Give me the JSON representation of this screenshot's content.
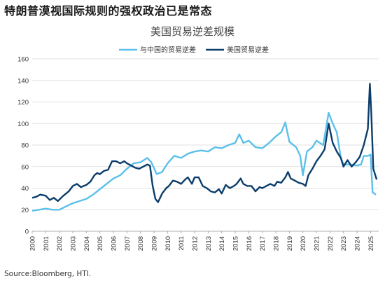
{
  "heading": "特朗普漠视国际规则的强权政治已是常态",
  "source": "Source:Bloomberg, HTI.",
  "chart_data": {
    "type": "line",
    "title": "美国贸易逆差规模",
    "xlabel": "",
    "ylabel": "",
    "ylim": [
      0,
      160
    ],
    "yticks": [
      0,
      20,
      40,
      60,
      80,
      100,
      120,
      140,
      160
    ],
    "xlim": [
      2000,
      2025.6
    ],
    "xticks": [
      "2000",
      "2001",
      "2002",
      "2003",
      "2004",
      "2005",
      "2006",
      "2007",
      "2008",
      "2009",
      "2010",
      "2011",
      "2012",
      "2013",
      "2014",
      "2015",
      "2016",
      "2017",
      "2018",
      "2019",
      "2020",
      "2021",
      "2022",
      "2023",
      "2024",
      "2025"
    ],
    "grid": "horizontal",
    "legend": "top-center",
    "series": [
      {
        "name": "与中国的贸易逆差",
        "color": "#5bc0eb",
        "points": [
          [
            2000.0,
            19
          ],
          [
            2000.5,
            20
          ],
          [
            2001.0,
            21
          ],
          [
            2001.5,
            20
          ],
          [
            2002.0,
            20
          ],
          [
            2002.5,
            23
          ],
          [
            2003.0,
            26
          ],
          [
            2003.5,
            28
          ],
          [
            2004.0,
            30
          ],
          [
            2004.5,
            34
          ],
          [
            2005.0,
            39
          ],
          [
            2005.5,
            44
          ],
          [
            2006.0,
            49
          ],
          [
            2006.5,
            52
          ],
          [
            2007.0,
            58
          ],
          [
            2007.5,
            63
          ],
          [
            2008.0,
            64
          ],
          [
            2008.5,
            68
          ],
          [
            2008.8,
            64
          ],
          [
            2009.2,
            53
          ],
          [
            2009.6,
            55
          ],
          [
            2010.0,
            63
          ],
          [
            2010.5,
            70
          ],
          [
            2011.0,
            68
          ],
          [
            2011.5,
            72
          ],
          [
            2012.0,
            74
          ],
          [
            2012.5,
            75
          ],
          [
            2013.0,
            74
          ],
          [
            2013.5,
            78
          ],
          [
            2014.0,
            77
          ],
          [
            2014.5,
            80
          ],
          [
            2015.0,
            82
          ],
          [
            2015.3,
            90
          ],
          [
            2015.6,
            82
          ],
          [
            2016.0,
            84
          ],
          [
            2016.5,
            78
          ],
          [
            2017.0,
            77
          ],
          [
            2017.5,
            82
          ],
          [
            2018.0,
            88
          ],
          [
            2018.4,
            92
          ],
          [
            2018.7,
            101
          ],
          [
            2019.0,
            83
          ],
          [
            2019.5,
            78
          ],
          [
            2019.8,
            70
          ],
          [
            2020.0,
            52
          ],
          [
            2020.3,
            74
          ],
          [
            2020.7,
            78
          ],
          [
            2021.0,
            84
          ],
          [
            2021.5,
            80
          ],
          [
            2021.9,
            110
          ],
          [
            2022.2,
            100
          ],
          [
            2022.5,
            92
          ],
          [
            2022.8,
            68
          ],
          [
            2023.0,
            62
          ],
          [
            2023.5,
            62
          ],
          [
            2024.0,
            61
          ],
          [
            2024.3,
            62
          ],
          [
            2024.5,
            70
          ],
          [
            2024.8,
            70
          ],
          [
            2025.0,
            71
          ],
          [
            2025.15,
            36
          ],
          [
            2025.4,
            34
          ]
        ]
      },
      {
        "name": "美国贸易逆差",
        "color": "#0b3d6b",
        "points": [
          [
            2000.0,
            31
          ],
          [
            2000.3,
            32
          ],
          [
            2000.6,
            34
          ],
          [
            2001.0,
            33
          ],
          [
            2001.3,
            29
          ],
          [
            2001.6,
            31
          ],
          [
            2001.9,
            28
          ],
          [
            2002.3,
            33
          ],
          [
            2002.7,
            37
          ],
          [
            2003.0,
            42
          ],
          [
            2003.3,
            44
          ],
          [
            2003.6,
            41
          ],
          [
            2004.0,
            43
          ],
          [
            2004.3,
            46
          ],
          [
            2004.6,
            52
          ],
          [
            2004.8,
            54
          ],
          [
            2005.0,
            53
          ],
          [
            2005.3,
            56
          ],
          [
            2005.6,
            57
          ],
          [
            2005.9,
            65
          ],
          [
            2006.2,
            65
          ],
          [
            2006.5,
            63
          ],
          [
            2006.8,
            65
          ],
          [
            2007.0,
            63
          ],
          [
            2007.3,
            61
          ],
          [
            2007.6,
            59
          ],
          [
            2007.9,
            58
          ],
          [
            2008.2,
            60
          ],
          [
            2008.5,
            62
          ],
          [
            2008.7,
            61
          ],
          [
            2008.9,
            42
          ],
          [
            2009.1,
            30
          ],
          [
            2009.3,
            27
          ],
          [
            2009.6,
            35
          ],
          [
            2009.9,
            40
          ],
          [
            2010.1,
            42
          ],
          [
            2010.4,
            47
          ],
          [
            2010.7,
            46
          ],
          [
            2011.0,
            44
          ],
          [
            2011.3,
            48
          ],
          [
            2011.5,
            50
          ],
          [
            2011.8,
            44
          ],
          [
            2012.0,
            50
          ],
          [
            2012.3,
            50
          ],
          [
            2012.6,
            42
          ],
          [
            2012.9,
            40
          ],
          [
            2013.2,
            37
          ],
          [
            2013.5,
            36
          ],
          [
            2013.8,
            39
          ],
          [
            2014.0,
            35
          ],
          [
            2014.3,
            43
          ],
          [
            2014.6,
            40
          ],
          [
            2014.9,
            42
          ],
          [
            2015.1,
            44
          ],
          [
            2015.4,
            49
          ],
          [
            2015.6,
            44
          ],
          [
            2015.9,
            42
          ],
          [
            2016.2,
            42
          ],
          [
            2016.5,
            37
          ],
          [
            2016.8,
            41
          ],
          [
            2017.0,
            40
          ],
          [
            2017.3,
            42
          ],
          [
            2017.6,
            44
          ],
          [
            2017.9,
            42
          ],
          [
            2018.1,
            46
          ],
          [
            2018.4,
            45
          ],
          [
            2018.7,
            50
          ],
          [
            2018.9,
            55
          ],
          [
            2019.1,
            49
          ],
          [
            2019.4,
            47
          ],
          [
            2019.7,
            45
          ],
          [
            2020.0,
            44
          ],
          [
            2020.2,
            42
          ],
          [
            2020.4,
            52
          ],
          [
            2020.7,
            58
          ],
          [
            2021.0,
            65
          ],
          [
            2021.3,
            70
          ],
          [
            2021.6,
            76
          ],
          [
            2021.9,
            100
          ],
          [
            2022.2,
            82
          ],
          [
            2022.5,
            74
          ],
          [
            2022.8,
            68
          ],
          [
            2023.0,
            60
          ],
          [
            2023.3,
            66
          ],
          [
            2023.6,
            60
          ],
          [
            2023.9,
            64
          ],
          [
            2024.2,
            69
          ],
          [
            2024.5,
            80
          ],
          [
            2024.8,
            95
          ],
          [
            2024.95,
            137
          ],
          [
            2025.05,
            110
          ],
          [
            2025.2,
            58
          ],
          [
            2025.45,
            48
          ]
        ]
      }
    ]
  }
}
